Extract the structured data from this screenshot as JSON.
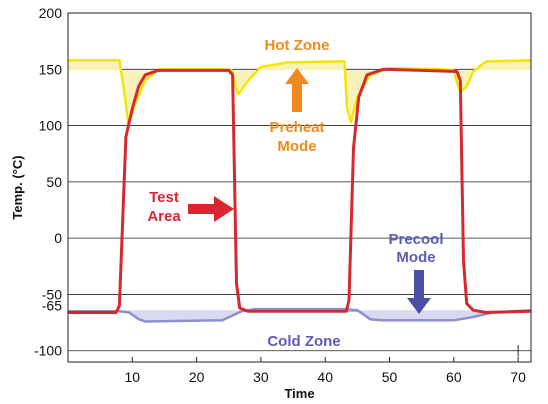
{
  "chart_data": {
    "type": "line",
    "title": "",
    "xlabel": "Time",
    "ylabel": "Temp. (°C)",
    "xlim": [
      0,
      72
    ],
    "ylim": [
      -110,
      200
    ],
    "x_ticks": [
      10,
      20,
      30,
      40,
      50,
      60,
      70
    ],
    "y_ticks": [
      -100,
      -50,
      0,
      50,
      100,
      150,
      200
    ],
    "y_extra_tick": "-65",
    "grid": "horizontal",
    "colors": {
      "test_area": "#d7282f",
      "hot_zone": "#f2e600",
      "hot_fill": "#f8f2b8",
      "cold_zone": "#8d8fcf",
      "cold_fill": "#d9daef",
      "hot_label": "#f08a1e",
      "cold_label": "#5a5cb6",
      "preheat_arrow": "#f08a1e",
      "precool_arrow": "#4b4fa8",
      "test_arrow": "#d7282f"
    },
    "series": [
      {
        "key": "hot_zone",
        "points": [
          [
            0,
            158
          ],
          [
            8,
            158
          ],
          [
            8.8,
            128
          ],
          [
            9.4,
            101
          ],
          [
            10.5,
            120
          ],
          [
            12,
            140
          ],
          [
            14,
            150
          ],
          [
            24,
            150
          ],
          [
            25.5,
            149
          ],
          [
            26,
            135
          ],
          [
            26.5,
            128
          ],
          [
            28,
            140
          ],
          [
            30,
            152
          ],
          [
            34,
            156
          ],
          [
            42,
            157
          ],
          [
            43,
            157
          ],
          [
            43.4,
            115
          ],
          [
            44,
            103
          ],
          [
            45,
            125
          ],
          [
            47,
            145
          ],
          [
            50,
            151
          ],
          [
            58,
            150
          ],
          [
            60,
            149
          ],
          [
            60.5,
            138
          ],
          [
            61,
            130
          ],
          [
            62,
            135
          ],
          [
            63,
            148
          ],
          [
            65,
            157
          ],
          [
            72,
            158
          ]
        ]
      },
      {
        "key": "test_area",
        "points": [
          [
            0,
            -66
          ],
          [
            7.5,
            -66
          ],
          [
            8,
            -60
          ],
          [
            9,
            90
          ],
          [
            10,
            115
          ],
          [
            11,
            135
          ],
          [
            12,
            145
          ],
          [
            14,
            149
          ],
          [
            25,
            149
          ],
          [
            25.6,
            145
          ],
          [
            26.2,
            -40
          ],
          [
            26.7,
            -62
          ],
          [
            28,
            -65
          ],
          [
            43.3,
            -65
          ],
          [
            43.7,
            -55
          ],
          [
            44.4,
            80
          ],
          [
            45.2,
            125
          ],
          [
            46.5,
            145
          ],
          [
            49,
            150
          ],
          [
            55,
            149
          ],
          [
            60.5,
            148
          ],
          [
            61,
            140
          ],
          [
            61.5,
            -20
          ],
          [
            62,
            -58
          ],
          [
            63,
            -64
          ],
          [
            65,
            -66
          ],
          [
            72,
            -65
          ]
        ]
      },
      {
        "key": "cold_zone",
        "points": [
          [
            0,
            -65
          ],
          [
            8,
            -65
          ],
          [
            9.5,
            -66
          ],
          [
            11,
            -72
          ],
          [
            12,
            -74
          ],
          [
            24,
            -73
          ],
          [
            27,
            -65
          ],
          [
            29,
            -63
          ],
          [
            43,
            -63
          ],
          [
            45,
            -64
          ],
          [
            47,
            -72
          ],
          [
            49,
            -73
          ],
          [
            60,
            -73
          ],
          [
            63,
            -70
          ],
          [
            66,
            -66
          ],
          [
            72,
            -64
          ]
        ]
      }
    ],
    "annotations": [
      {
        "text": "Hot Zone",
        "color": "#f08a1e"
      },
      {
        "text": "Preheat",
        "color": "#f08a1e"
      },
      {
        "text": "Mode",
        "color": "#f08a1e"
      },
      {
        "text": "Test",
        "color": "#d7282f"
      },
      {
        "text": "Area",
        "color": "#d7282f"
      },
      {
        "text": "Precool",
        "color": "#5a5cb6"
      },
      {
        "text": "Mode",
        "color": "#5a5cb6"
      },
      {
        "text": "Cold Zone",
        "color": "#5a5cb6"
      }
    ]
  }
}
